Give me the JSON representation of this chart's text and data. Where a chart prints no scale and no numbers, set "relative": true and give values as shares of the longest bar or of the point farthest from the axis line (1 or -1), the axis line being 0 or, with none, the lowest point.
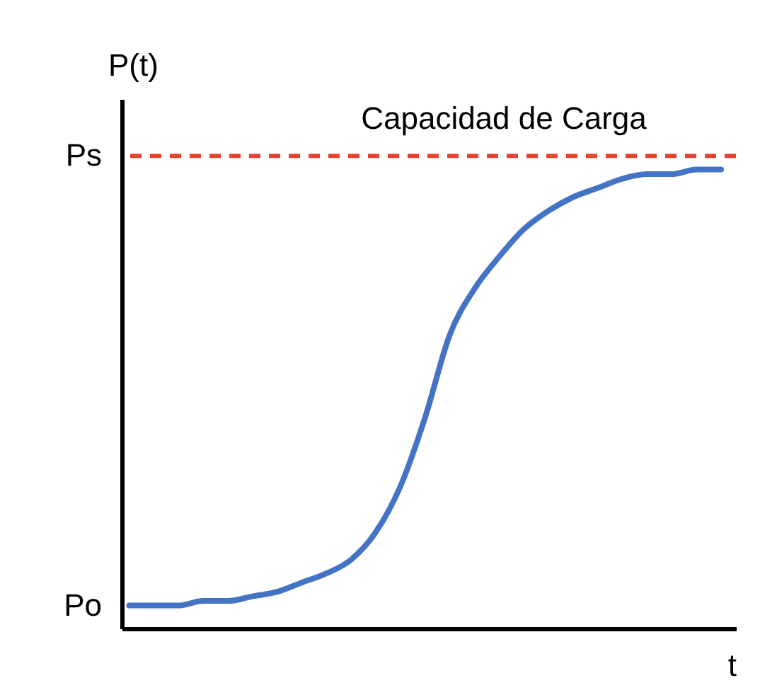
{
  "chart_data": {
    "type": "line",
    "relative": true,
    "xlabel": "t",
    "ylabel": "P(t)",
    "grid": false,
    "categories": [
      null,
      null,
      null,
      null,
      null,
      null,
      null,
      null,
      null,
      null,
      null,
      null,
      null,
      null,
      null,
      null,
      null,
      null,
      null,
      null,
      null,
      null,
      null,
      null,
      null
    ],
    "series": [
      {
        "color": "#4472c4",
        "values": [
          0.05,
          0.05,
          0.05,
          0.06,
          0.06,
          0.07,
          0.08,
          0.1,
          0.12,
          0.15,
          0.21,
          0.31,
          0.46,
          0.64,
          0.74,
          0.81,
          0.87,
          0.91,
          0.94,
          0.96,
          0.98,
          0.99,
          0.99,
          1,
          1
        ]
      }
    ],
    "ref_lines": [
      {
        "axis": "y",
        "value": 1.03,
        "label": "Capacidad de Carga",
        "color": "#e8412f",
        "line_style": "dashed"
      }
    ],
    "annotations": [
      "Ps",
      "Po"
    ]
  }
}
